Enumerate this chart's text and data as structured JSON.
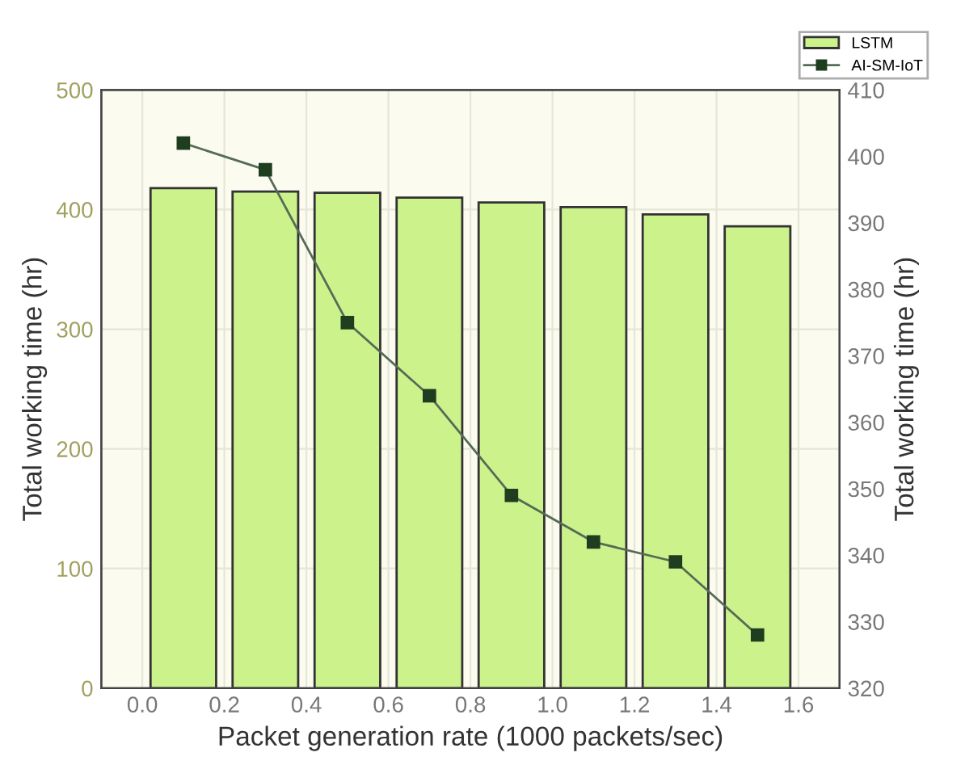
{
  "chart_data": {
    "type": "bar",
    "xlabel": "Packet generation rate (1000 packets/sec)",
    "ylabel": "Total working time (hr)",
    "y2label": "Total working time (hr)",
    "x": [
      0.1,
      0.3,
      0.5,
      0.7,
      0.9,
      1.1,
      1.3,
      1.5
    ],
    "series": [
      {
        "name": "LSTM",
        "color": "#ccf28c",
        "values": [
          418,
          415,
          414,
          410,
          406,
          402,
          396,
          386
        ]
      },
      {
        "name": "AI-SM-IoT",
        "type": "line",
        "axis": "y2",
        "color": "#556b55",
        "marker": "square",
        "values": [
          402,
          398,
          375,
          364,
          349,
          342,
          339,
          328
        ]
      }
    ],
    "xlim": [
      -0.1,
      1.7
    ],
    "xticks": [
      {
        "value": 0.0,
        "label": "0.0"
      },
      0.2,
      0.4,
      0.6,
      0.8,
      {
        "value": 1.0,
        "label": "1.0"
      },
      1.2,
      1.4,
      1.6
    ],
    "ylim": [
      0,
      500
    ],
    "yticks": [
      0,
      100,
      200,
      300,
      400,
      500
    ],
    "y2lim": [
      320,
      410
    ],
    "y2ticks": [
      320,
      330,
      340,
      350,
      360,
      370,
      380,
      390,
      400,
      410
    ],
    "grid": true,
    "legend": "top right"
  }
}
